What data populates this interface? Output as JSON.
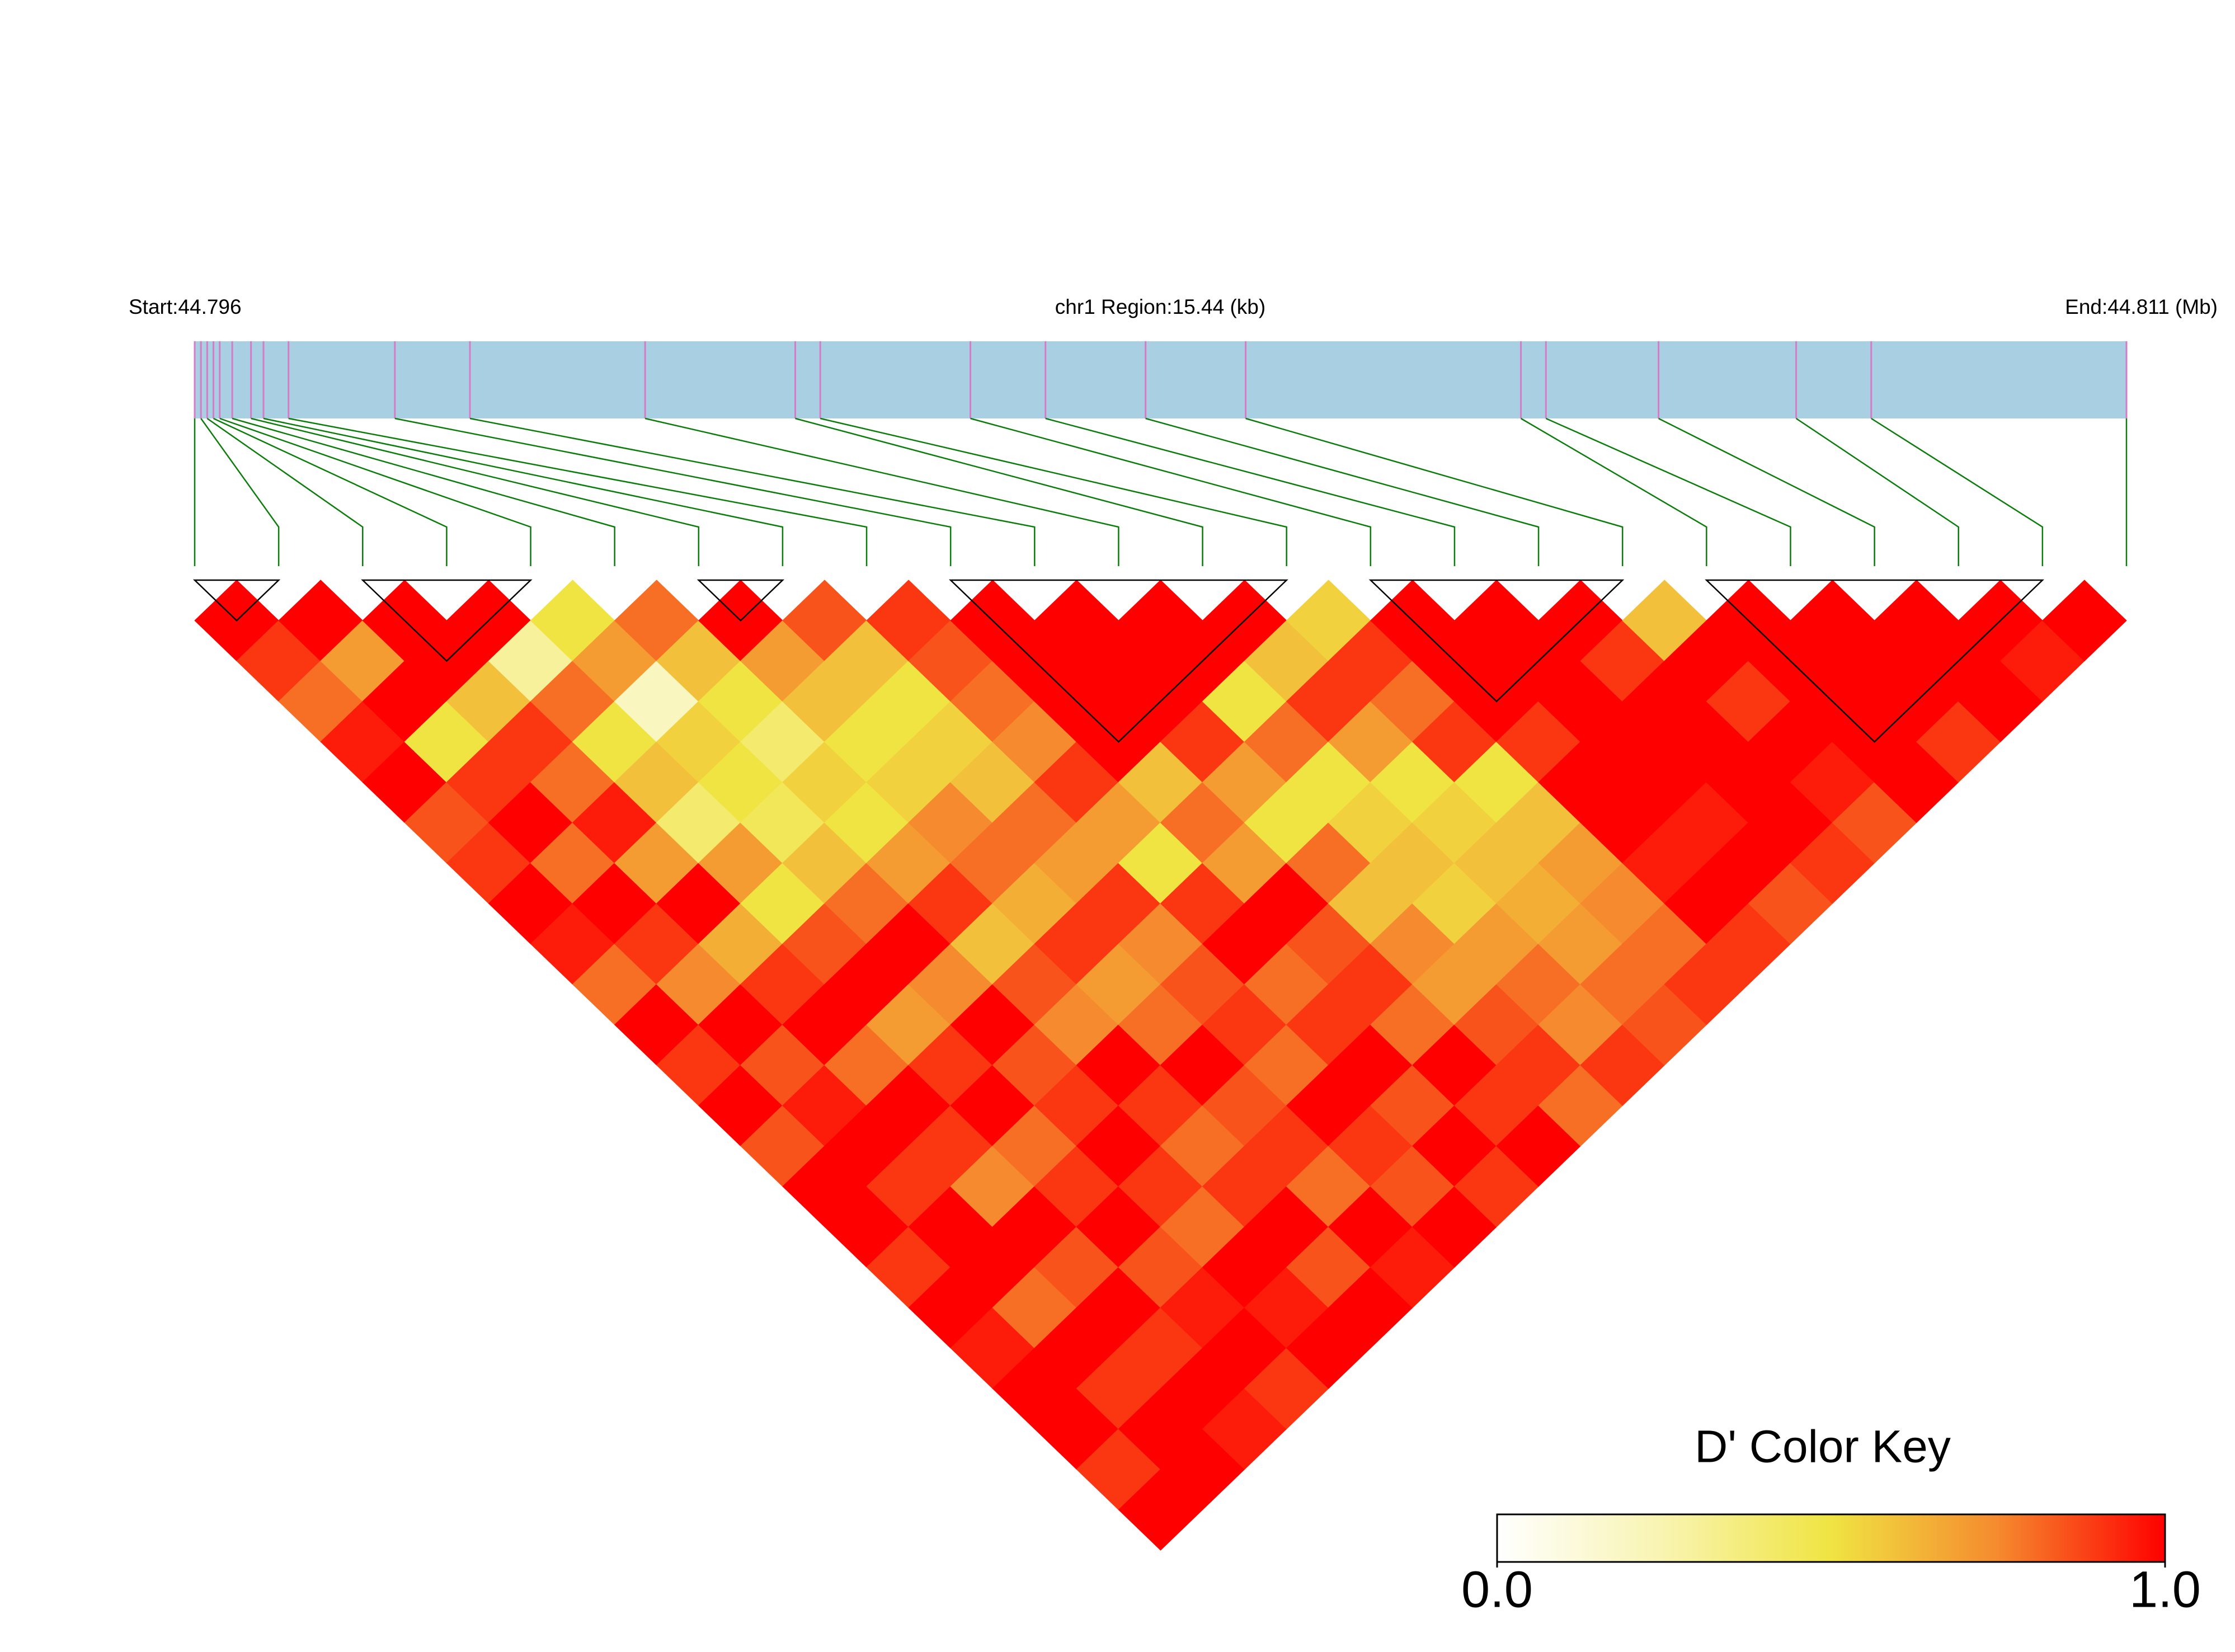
{
  "chart_data": {
    "type": "ld_heatmap",
    "start_label": "Start:44.796",
    "region_label": "chr1 Region:15.44 (kb)",
    "end_label": "End:44.811 (Mb)",
    "xlim": [
      0,
      15.44
    ],
    "snp_positions_kb": [
      0,
      0.05,
      0.1,
      0.15,
      0.2,
      0.3,
      0.45,
      0.55,
      0.75,
      1.6,
      2.2,
      3.6,
      4.8,
      5.0,
      6.2,
      6.8,
      7.6,
      8.4,
      10.6,
      10.8,
      11.7,
      12.8,
      13.4,
      15.44
    ],
    "track_color": "#a8cfe2",
    "snp_tick_color": "#d67bc6",
    "connector_color": "#0a7d0a",
    "matrix": [
      [
        1,
        0.9,
        0.8,
        0.95,
        1,
        0.85,
        0.9,
        1,
        0.95,
        0.8,
        1,
        0.9,
        1,
        0.85,
        1,
        1,
        0.9,
        1,
        0.95,
        1,
        1,
        0.9,
        1
      ],
      [
        1,
        0.7,
        1,
        0.5,
        0.9,
        1,
        0.8,
        1,
        0.9,
        0.75,
        1,
        0.85,
        0.95,
        1,
        0.9,
        1,
        1,
        0.8,
        1,
        0.9,
        1,
        1
      ],
      [
        1,
        1,
        0.6,
        0.9,
        0.8,
        0.95,
        0.7,
        1,
        0.65,
        0.9,
        1,
        0.8,
        1,
        0.9,
        0.75,
        1,
        0.85,
        1,
        0.9,
        1,
        0.95
      ],
      [
        1,
        0.3,
        0.8,
        0.5,
        0.6,
        0.4,
        0.7,
        0.5,
        0.85,
        1,
        0.7,
        0.9,
        1,
        0.8,
        0.9,
        1,
        0.85,
        0.95,
        1,
        0.9
      ],
      [
        0.5,
        0.7,
        0.2,
        0.55,
        0.5,
        0.45,
        0.6,
        0.8,
        1,
        0.75,
        1,
        0.85,
        0.9,
        1,
        0.9,
        0.8,
        1,
        0.95,
        1
      ],
      [
        0.8,
        0.6,
        0.5,
        0.4,
        0.55,
        0.5,
        0.7,
        0.9,
        0.6,
        0.85,
        0.75,
        1,
        0.9,
        0.8,
        0.9,
        1,
        0.85,
        1
      ],
      [
        1,
        0.7,
        0.6,
        0.5,
        0.55,
        0.75,
        0.8,
        0.65,
        0.9,
        0.7,
        0.8,
        1,
        0.85,
        0.9,
        0.8,
        1,
        0.95
      ],
      [
        0.85,
        0.6,
        0.5,
        0.55,
        0.6,
        0.8,
        0.7,
        0.9,
        0.75,
        0.85,
        0.9,
        0.8,
        1,
        0.9,
        0.85,
        1
      ],
      [
        0.9,
        0.85,
        0.8,
        0.75,
        0.9,
        0.7,
        0.5,
        0.9,
        1,
        0.8,
        0.9,
        1,
        0.85,
        1,
        0.9
      ],
      [
        1,
        1,
        1,
        1,
        0.6,
        0.8,
        0.7,
        1,
        0.85,
        0.9,
        0.8,
        1,
        0.9,
        1
      ],
      [
        1,
        1,
        1,
        0.9,
        0.7,
        0.5,
        0.8,
        0.6,
        0.75,
        0.7,
        0.85,
        0.9,
        0.8
      ],
      [
        1,
        1,
        0.5,
        0.8,
        0.5,
        0.55,
        0.6,
        0.55,
        0.7,
        0.8,
        0.75,
        0.9
      ],
      [
        1,
        0.6,
        0.9,
        0.7,
        0.5,
        0.55,
        0.6,
        0.65,
        0.7,
        0.8,
        0.85
      ],
      [
        0.55,
        0.9,
        0.8,
        0.9,
        0.5,
        0.6,
        0.7,
        0.75,
        0.8,
        0.9
      ],
      [
        1,
        1,
        1,
        0.9,
        1,
        1,
        0.95,
        1,
        0.9
      ],
      [
        1,
        1,
        1,
        1,
        1,
        0.95,
        1,
        0.85
      ],
      [
        1,
        0.9,
        1,
        1,
        1,
        1,
        0.9
      ],
      [
        0.6,
        1,
        0.9,
        1,
        0.95,
        0.85
      ],
      [
        1,
        1,
        1,
        1,
        1
      ],
      [
        1,
        1,
        1,
        0.9
      ],
      [
        1,
        1,
        1
      ],
      [
        1,
        0.95
      ],
      [
        1
      ]
    ],
    "blocks": [
      [
        0,
        1
      ],
      [
        2,
        4
      ],
      [
        6,
        7
      ],
      [
        9,
        13
      ],
      [
        14,
        17
      ],
      [
        18,
        22
      ]
    ],
    "colorbar": {
      "title": "D' Color Key",
      "clim": [
        0,
        1
      ],
      "colors": [
        "#ffffff",
        "#f8f4b0",
        "#f0e442",
        "#f58a2e",
        "#ff0000"
      ],
      "ticks": [
        {
          "value": 0,
          "label": "0.0"
        },
        {
          "value": 1,
          "label": "1.0"
        }
      ]
    }
  }
}
